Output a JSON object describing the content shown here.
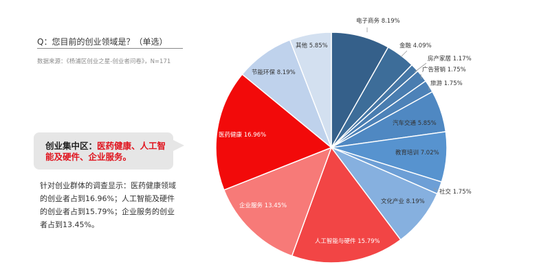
{
  "question": "Q：您目前的创业领域是？（单选）",
  "source": "数据来源：《杨浦区创业之星-创业者问卷》，N=171",
  "callout": {
    "prefix": "创业集中区：",
    "highlight": "医药健康、人工智能及硬件、企业服务。"
  },
  "description": "针对创业群体的调查显示：医药健康领域的创业者占到16.96%；人工智能及硬件的创业者占到15.79%；企业服务的创业者占到13.45%。",
  "chart_data": {
    "type": "pie",
    "slices": [
      {
        "label": "电子商务",
        "value": 8.19,
        "value_text": "8.19%",
        "color": "#35608a"
      },
      {
        "label": "金融",
        "value": 4.09,
        "value_text": "4.09%",
        "color": "#3d6d99"
      },
      {
        "label": "房产家居",
        "value": 1.17,
        "value_text": "1.17%",
        "color": "#4677a6"
      },
      {
        "label": "广告营销",
        "value": 1.75,
        "value_text": "1.75%",
        "color": "#4a7db0"
      },
      {
        "label": "旅游",
        "value": 1.75,
        "value_text": "1.75%",
        "color": "#4d82b8"
      },
      {
        "label": "汽车交通",
        "value": 5.85,
        "value_text": "5.85%",
        "color": "#4f88c2"
      },
      {
        "label": "教育培训",
        "value": 7.02,
        "value_text": "7.02%",
        "color": "#5793cf"
      },
      {
        "label": "社交",
        "value": 1.75,
        "value_text": "1.75%",
        "color": "#6d9fd6"
      },
      {
        "label": "文化产业",
        "value": 8.19,
        "value_text": "8.19%",
        "color": "#86b0df"
      },
      {
        "label": "人工智能与硬件",
        "value": 15.79,
        "value_text": "15.79%",
        "color": "#f24545"
      },
      {
        "label": "企业服务",
        "value": 13.45,
        "value_text": "13.45%",
        "color": "#f77a78"
      },
      {
        "label": "医药健康",
        "value": 16.96,
        "value_text": "16.96%",
        "color": "#f20a0a"
      },
      {
        "label": "节能环保",
        "value": 8.19,
        "value_text": "8.19%",
        "color": "#bfd2ec"
      },
      {
        "label": "其他",
        "value": 5.85,
        "value_text": "5.85%",
        "color": "#d3e0f0"
      }
    ]
  }
}
